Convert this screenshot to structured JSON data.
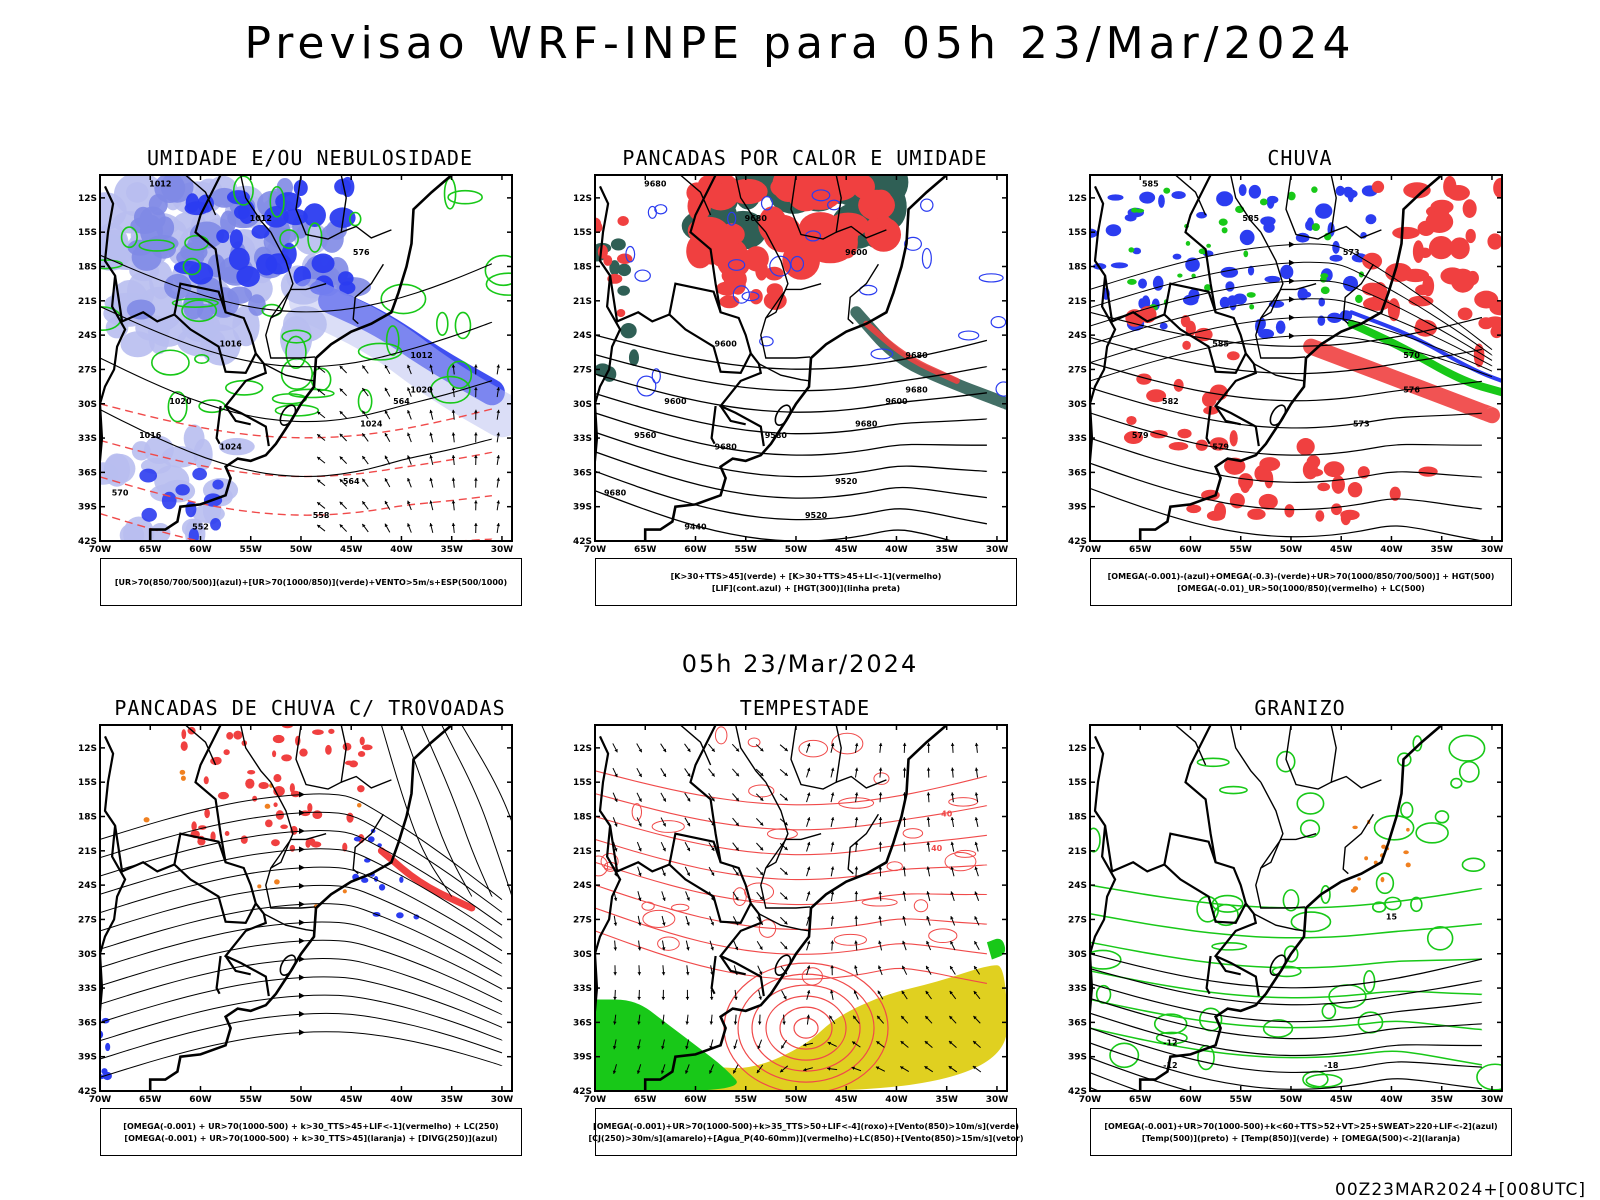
{
  "title": "Previsao WRF-INPE  para 05h 23/Mar/2024",
  "subtitle": "05h 23/Mar/2024",
  "footer": "00Z23MAR2024+[008UTC]",
  "axes": {
    "lat_labels": [
      "12S",
      "15S",
      "18S",
      "21S",
      "24S",
      "27S",
      "30S",
      "33S",
      "36S",
      "39S",
      "42S"
    ],
    "lon_labels": [
      "70W",
      "65W",
      "60W",
      "55W",
      "50W",
      "45W",
      "40W",
      "35W",
      "30W"
    ]
  },
  "colors": {
    "black": "#000000",
    "blue_shade": "#2b3cf0",
    "light_blue": "#b8bef0",
    "mid_blue": "#7f8ae6",
    "green": "#18c818",
    "red": "#f04040",
    "dark_teal": "#2f5f55",
    "orange": "#f08020",
    "yellow": "#e0d020",
    "red_line": "#f04a4a"
  },
  "panels": [
    {
      "title": "UMIDADE E/OU NEBULOSIDADE",
      "legend": [
        "[UR>70(850/700/500)](azul)+[UR>70(1000/850)](verde)+VENTO>5m/s+ESP(500/1000)"
      ],
      "contour_labels": [
        "1012",
        "1012",
        "1016",
        "1020",
        "1024",
        "1016",
        "1020",
        "1024",
        "1012",
        "576",
        "564",
        "564",
        "558",
        "552",
        "570"
      ]
    },
    {
      "title": "PANCADAS POR CALOR E UMIDADE",
      "legend": [
        "[K>30+TTS>45](verde) + [K>30+TTS>45+LI<-1](vermelho)",
        "[LIF](cont.azul) + [HGT(300)](linha preta)"
      ],
      "contour_labels": [
        "9680",
        "9680",
        "9600",
        "9600",
        "9680",
        "9560",
        "9680",
        "9680",
        "9680",
        "9600",
        "9600",
        "9520",
        "9520",
        "9440",
        "9680",
        "9580"
      ]
    },
    {
      "title": "CHUVA",
      "legend": [
        "[OMEGA(-0.001)-(azul)+OMEGA(-0.3)-(verde)+UR>70(1000/850/700/500)] + HGT(500)",
        "[OMEGA(-0.01)_UR>50(1000/850)(vermelho) + LC(500)"
      ],
      "contour_labels": [
        "585",
        "585",
        "585",
        "582",
        "579",
        "579",
        "576",
        "573",
        "570",
        "573"
      ]
    },
    {
      "title": "PANCADAS DE CHUVA C/ TROVOADAS",
      "legend": [
        "[OMEGA(-0.001) + UR>70(1000-500) + k>30_TTS>45+LIF<-1](vermelho) + LC(250)",
        "[OMEGA(-0.001) + UR>70(1000-500) + k>30_TTS>45](laranja) + [DIVG(250)](azul)"
      ],
      "contour_labels": []
    },
    {
      "title": "TEMPESTADE",
      "legend": [
        "[OMEGA(-0.001)+UR>70(1000-500)+k>35_TTS>50+LIF<-4](roxo)+[Vento(850)>10m/s](verde)",
        "[CJ(250)>30m/s](amarelo)+[Agua_P(40-60mm)](vermelho)+LC(850)+[Vento(850)>15m/s](vetor)"
      ],
      "contour_labels": [
        "40",
        "40"
      ]
    },
    {
      "title": "GRANIZO",
      "legend": [
        "[OMEGA(-0.001)+UR>70(1000-500)+k<60+TTS>52+VT>25+SWEAT>220+LIF<-2](azul)",
        "[Temp(500)](preto) + [Temp(850)](verde) + [OMEGA(500)<-2](laranja)"
      ],
      "contour_labels": [
        "-12",
        "-18",
        "-12",
        "15"
      ]
    }
  ]
}
